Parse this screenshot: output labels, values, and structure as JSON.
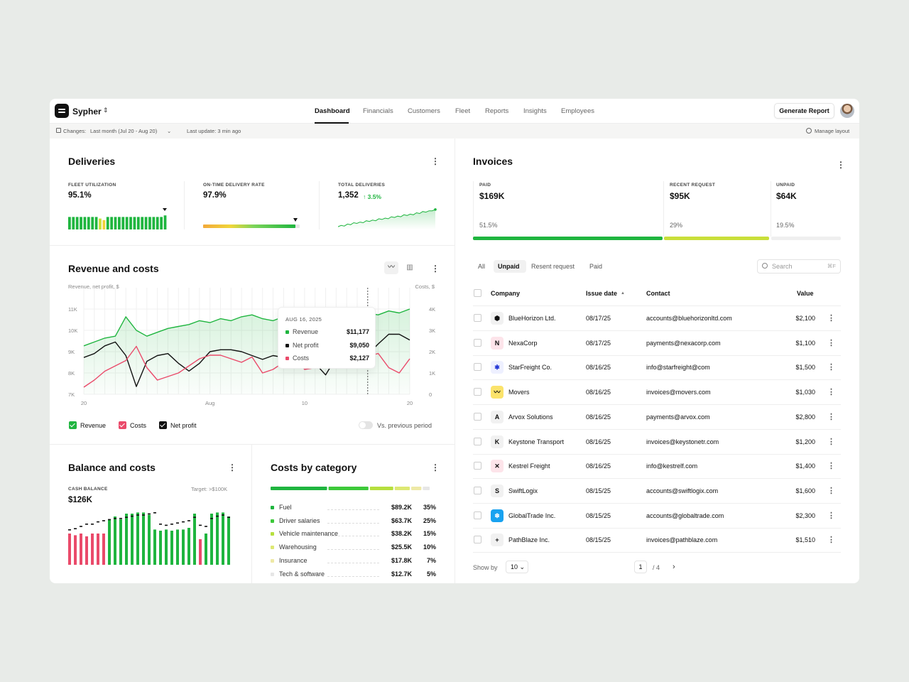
{
  "app": {
    "name": "Sypher"
  },
  "nav": {
    "items": [
      "Dashboard",
      "Financials",
      "Customers",
      "Fleet",
      "Reports",
      "Insights",
      "Employees"
    ],
    "active": "Dashboard"
  },
  "header": {
    "generate_report": "Generate Report"
  },
  "subbar": {
    "changes": "Changes:",
    "range": "Last month (Jul 20 - Aug 20)",
    "last_update": "Last update: 3 min ago",
    "manage_layout": "Manage layout"
  },
  "deliveries": {
    "title": "Deliveries",
    "fleet_utilization": {
      "label": "FLEET UTILIZATION",
      "value": "95.1%"
    },
    "on_time": {
      "label": "ON-TIME DELIVERY RATE",
      "value": "97.9%",
      "level": 0.979
    },
    "total": {
      "label": "TOTAL DELIVERIES",
      "value": "1,352",
      "change": "↑ 3.5%"
    }
  },
  "revenue": {
    "title": "Revenue and costs",
    "left_axis_label": "Revenue, net profit, $",
    "right_axis_label": "Costs, $",
    "legend": {
      "revenue": "Revenue",
      "costs": "Costs",
      "net_profit": "Net profit",
      "vs_previous": "Vs. previous period"
    },
    "tooltip": {
      "date": "AUG 16, 2025",
      "rows": [
        {
          "name": "Revenue",
          "value": "$11,177"
        },
        {
          "name": "Net profit",
          "value": "$9,050"
        },
        {
          "name": "Costs",
          "value": "$2,127"
        }
      ]
    }
  },
  "balance": {
    "title": "Balance and costs",
    "cash_label": "CASH BALANCE",
    "target": "Target: >$100K",
    "value": "$126K"
  },
  "categories": {
    "title": "Costs by category",
    "items": [
      {
        "name": "Fuel",
        "amount": "$89.2K",
        "pct": "35%",
        "color": "#1fb53f"
      },
      {
        "name": "Driver salaries",
        "amount": "$63.7K",
        "pct": "25%",
        "color": "#3dc93a"
      },
      {
        "name": "Vehicle maintenance",
        "amount": "$38.2K",
        "pct": "15%",
        "color": "#b6df3e"
      },
      {
        "name": "Warehousing",
        "amount": "$25.5K",
        "pct": "10%",
        "color": "#dde873"
      },
      {
        "name": "Insurance",
        "amount": "$17.8K",
        "pct": "7%",
        "color": "#eee9a6"
      },
      {
        "name": "Tech & software",
        "amount": "$12.7K",
        "pct": "5%",
        "color": "#e6e6e6"
      }
    ]
  },
  "invoices": {
    "title": "Invoices",
    "summary": [
      {
        "label": "PAID",
        "value": "$169K",
        "pct": "51.5%"
      },
      {
        "label": "RECENT REQUEST",
        "value": "$95K",
        "pct": "29%"
      },
      {
        "label": "UNPAID",
        "value": "$64K",
        "pct": "19.5%"
      }
    ],
    "tabs": [
      "All",
      "Unpaid",
      "Resent request",
      "Paid"
    ],
    "active_tab": "Unpaid",
    "search_placeholder": "Search",
    "search_shortcut": "⌘F",
    "columns": {
      "company": "Company",
      "issue_date": "Issue date",
      "contact": "Contact",
      "value": "Value"
    },
    "rows": [
      {
        "company": "BlueHorizon Ltd.",
        "date": "08/17/25",
        "contact": "accounts@bluehorizonltd.com",
        "value": "$2,100"
      },
      {
        "company": "NexaCorp",
        "date": "08/17/25",
        "contact": "payments@nexacorp.com",
        "value": "$1,100"
      },
      {
        "company": "StarFreight Co.",
        "date": "08/16/25",
        "contact": "info@starfreight@com",
        "value": "$1,500"
      },
      {
        "company": "Movers",
        "date": "08/16/25",
        "contact": "invoices@movers.com",
        "value": "$1,030"
      },
      {
        "company": "Arvox Solutions",
        "date": "08/16/25",
        "contact": "payments@arvox.com",
        "value": "$2,800"
      },
      {
        "company": "Keystone Transport",
        "date": "08/16/25",
        "contact": "invoices@keystonetr.com",
        "value": "$1,200"
      },
      {
        "company": "Kestrel Freight",
        "date": "08/16/25",
        "contact": "info@kestrelf.com",
        "value": "$1,400"
      },
      {
        "company": "SwiftLogix",
        "date": "08/15/25",
        "contact": "accounts@swiftlogix.com",
        "value": "$1,600"
      },
      {
        "company": "GlobalTrade Inc.",
        "date": "08/15/25",
        "contact": "accounts@globaltrade.com",
        "value": "$2,300"
      },
      {
        "company": "PathBlaze Inc.",
        "date": "08/15/25",
        "contact": "invoices@pathblaze.com",
        "value": "$1,510"
      }
    ],
    "show_by_label": "Show by",
    "show_by_value": "10",
    "page": "1",
    "total_pages": "/  4"
  },
  "chart_data": [
    {
      "type": "line",
      "title": "Revenue and costs",
      "x": [
        "Jul 20",
        "Jul 21",
        "Jul 22",
        "Jul 23",
        "Jul 24",
        "Jul 25",
        "Jul 26",
        "Jul 27",
        "Jul 28",
        "Jul 29",
        "Jul 30",
        "Jul 31",
        "Aug 1",
        "Aug 2",
        "Aug 3",
        "Aug 4",
        "Aug 5",
        "Aug 6",
        "Aug 7",
        "Aug 8",
        "Aug 9",
        "Aug 10",
        "Aug 11",
        "Aug 12",
        "Aug 13",
        "Aug 14",
        "Aug 15",
        "Aug 16",
        "Aug 17",
        "Aug 18",
        "Aug 19",
        "Aug 20"
      ],
      "x_ticks": [
        "20",
        "Aug",
        "10",
        "20"
      ],
      "left_axis": {
        "label": "Revenue, net profit, $",
        "ticks": [
          "7K",
          "8K",
          "9K",
          "10K",
          "11K"
        ],
        "range": [
          7000,
          11400
        ]
      },
      "right_axis": {
        "label": "Costs, $",
        "ticks": [
          "0",
          "1K",
          "2K",
          "3K",
          "4K"
        ],
        "range": [
          0,
          4800
        ]
      },
      "series": [
        {
          "name": "Revenue",
          "axis": "left",
          "color": "#1fb53f",
          "values": [
            9500,
            9700,
            9900,
            10000,
            11000,
            10300,
            10000,
            10200,
            10400,
            10500,
            10600,
            10800,
            10700,
            10900,
            10800,
            11000,
            11100,
            10900,
            10800,
            11000,
            10800,
            10900,
            11000,
            10700,
            11100,
            10900,
            11000,
            11177,
            11100,
            11300,
            11200,
            11400
          ]
        },
        {
          "name": "Net profit",
          "axis": "left",
          "color": "#111111",
          "values": [
            8900,
            9100,
            9500,
            9700,
            9000,
            7400,
            8700,
            9000,
            9100,
            8600,
            8200,
            8600,
            9200,
            9300,
            9300,
            9200,
            9000,
            8800,
            9000,
            8900,
            9000,
            8900,
            8600,
            8000,
            8900,
            8900,
            8500,
            9050,
            9600,
            10100,
            10100,
            9800
          ]
        },
        {
          "name": "Costs",
          "axis": "right",
          "color": "#ea4a6a",
          "values": [
            400,
            800,
            1300,
            1600,
            1900,
            2700,
            1500,
            800,
            1000,
            1200,
            1600,
            2000,
            2200,
            2200,
            2000,
            1800,
            2100,
            1200,
            1400,
            1800,
            2200,
            1400,
            1500,
            1700,
            1900,
            2200,
            2700,
            2127,
            2300,
            1500,
            1200,
            2000
          ]
        }
      ],
      "highlight": {
        "x": "Aug 16",
        "Revenue": 11177,
        "Net profit": 9050,
        "Costs": 2127
      }
    },
    {
      "type": "bar",
      "title": "Fleet utilization",
      "values": [
        80,
        80,
        80,
        80,
        80,
        80,
        80,
        80,
        70,
        60,
        80,
        80,
        80,
        80,
        80,
        80,
        80,
        80,
        80,
        80,
        80,
        80,
        80,
        80,
        80,
        90
      ],
      "colors_note": "green bars, bars 9-10 lime/yellow"
    },
    {
      "type": "line",
      "title": "Total deliveries",
      "values": [
        12,
        14,
        13,
        16,
        15,
        18,
        17,
        19,
        18,
        21,
        20,
        22,
        21,
        24,
        23,
        25,
        24,
        27,
        26,
        28,
        27,
        30,
        29,
        31,
        30,
        33,
        32,
        35,
        34,
        36,
        36,
        38
      ]
    },
    {
      "type": "bar",
      "title": "Balance and costs",
      "categories": 29,
      "series": [
        {
          "name": "Income",
          "values": [
            0,
            0,
            0,
            0,
            0,
            0,
            0,
            0,
            0,
            0,
            0,
            0,
            0,
            0,
            0,
            0,
            0,
            0,
            0,
            0,
            0,
            0,
            0,
            0,
            0,
            0,
            0,
            0,
            0
          ]
        },
        {
          "name": "Bars",
          "values": [
            55,
            52,
            55,
            50,
            55,
            55,
            55,
            80,
            85,
            80,
            90,
            90,
            92,
            92,
            88,
            62,
            60,
            62,
            60,
            62,
            62,
            65,
            90,
            45,
            55,
            90,
            92,
            92,
            85
          ]
        },
        {
          "name": "Markers",
          "values": [
            60,
            62,
            66,
            70,
            70,
            74,
            76,
            78,
            80,
            80,
            82,
            84,
            86,
            86,
            88,
            90,
            70,
            68,
            70,
            72,
            74,
            76,
            82,
            68,
            66,
            80,
            84,
            86,
            82
          ]
        }
      ],
      "bar_colors": [
        "#ea4a6a",
        "#ea4a6a",
        "#ea4a6a",
        "#ea4a6a",
        "#ea4a6a",
        "#ea4a6a",
        "#ea4a6a",
        "#1fb53f",
        "#1fb53f",
        "#1fb53f",
        "#1fb53f",
        "#1fb53f",
        "#1fb53f",
        "#1fb53f",
        "#1fb53f",
        "#1fb53f",
        "#1fb53f",
        "#1fb53f",
        "#1fb53f",
        "#1fb53f",
        "#1fb53f",
        "#1fb53f",
        "#1fb53f",
        "#ea4a6a",
        "#1fb53f",
        "#1fb53f",
        "#1fb53f",
        "#1fb53f",
        "#1fb53f"
      ]
    },
    {
      "type": "bar",
      "title": "Costs by category",
      "categories": [
        "Fuel",
        "Driver salaries",
        "Vehicle maintenance",
        "Warehousing",
        "Insurance",
        "Tech & software"
      ],
      "values": [
        35,
        25,
        15,
        10,
        7,
        5
      ]
    }
  ]
}
